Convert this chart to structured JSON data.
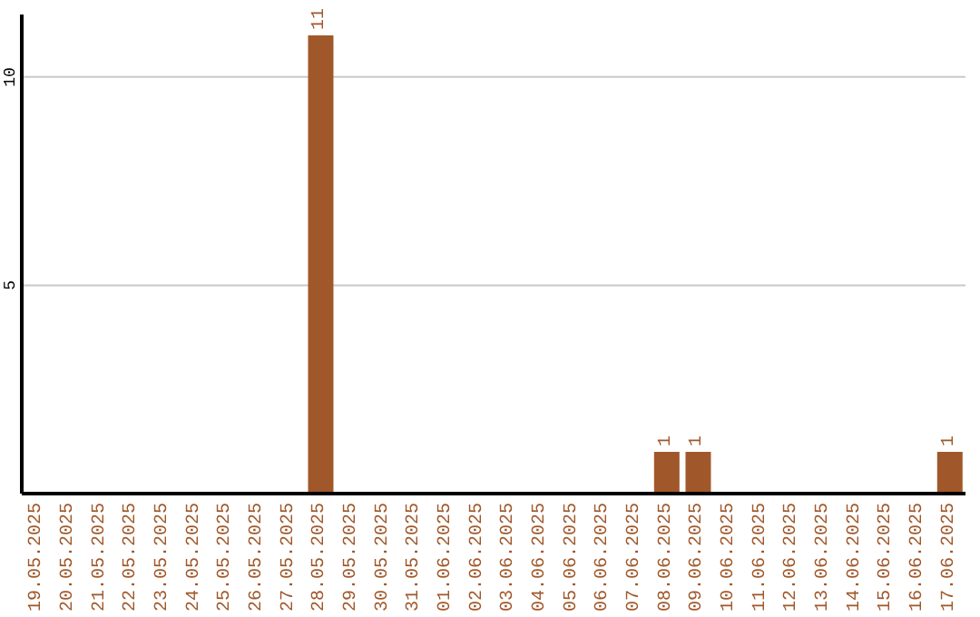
{
  "chart_data": {
    "type": "bar",
    "categories": [
      "19.05.2025",
      "20.05.2025",
      "21.05.2025",
      "22.05.2025",
      "23.05.2025",
      "24.05.2025",
      "25.05.2025",
      "26.05.2025",
      "27.05.2025",
      "28.05.2025",
      "29.05.2025",
      "30.05.2025",
      "31.05.2025",
      "01.06.2025",
      "02.06.2025",
      "03.06.2025",
      "04.06.2025",
      "05.06.2025",
      "06.06.2025",
      "07.06.2025",
      "08.06.2025",
      "09.06.2025",
      "10.06.2025",
      "11.06.2025",
      "12.06.2025",
      "13.06.2025",
      "14.06.2025",
      "15.06.2025",
      "16.06.2025",
      "17.06.2025"
    ],
    "values": [
      0,
      0,
      0,
      0,
      0,
      0,
      0,
      0,
      0,
      11,
      0,
      0,
      0,
      0,
      0,
      0,
      0,
      0,
      0,
      0,
      1,
      1,
      0,
      0,
      0,
      0,
      0,
      0,
      0,
      1
    ],
    "value_labels": [
      null,
      null,
      null,
      null,
      null,
      null,
      null,
      null,
      null,
      "11",
      null,
      null,
      null,
      null,
      null,
      null,
      null,
      null,
      null,
      null,
      "1",
      "1",
      null,
      null,
      null,
      null,
      null,
      null,
      null,
      "1"
    ],
    "color": "#a0582a",
    "ylim": [
      0,
      11.5
    ],
    "yticks": [
      5,
      10
    ],
    "grid": "y"
  }
}
